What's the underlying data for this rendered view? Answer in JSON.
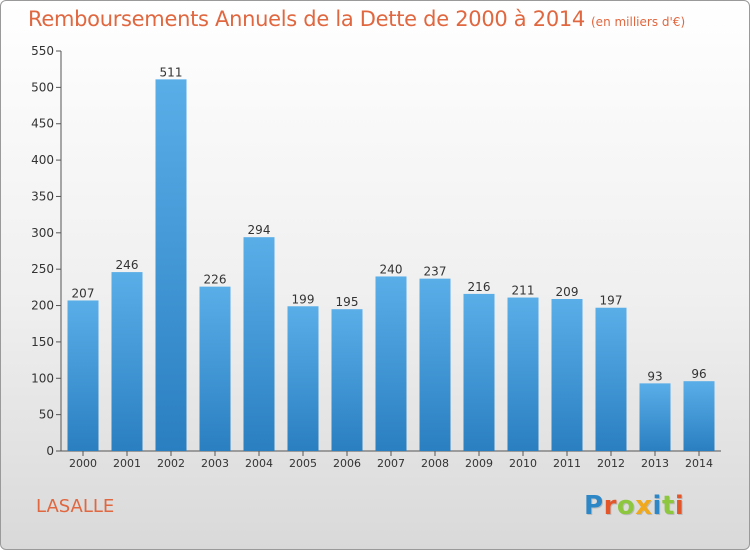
{
  "title": "Remboursements Annuels de la Dette de 2000 à 2014",
  "subtitle": "(en milliers d'€)",
  "commune": "LASALLE",
  "logo": {
    "letters": [
      "P",
      "r",
      "o",
      "x",
      "i",
      "t",
      "i"
    ],
    "colors": [
      "#2d86c6",
      "#e3562a",
      "#8dc63f",
      "#f0a81c",
      "#2d86c6",
      "#8dc63f",
      "#e3562a"
    ]
  },
  "colors": {
    "bar_top": "#5aaee8",
    "bar_bottom": "#2a7fc1",
    "title": "#e0673f"
  },
  "chart_data": {
    "type": "bar",
    "categories": [
      "2000",
      "2001",
      "2002",
      "2003",
      "2004",
      "2005",
      "2006",
      "2007",
      "2008",
      "2009",
      "2010",
      "2011",
      "2012",
      "2013",
      "2014"
    ],
    "values": [
      207,
      246,
      511,
      226,
      294,
      199,
      195,
      240,
      237,
      216,
      211,
      209,
      197,
      93,
      96
    ],
    "ylim": [
      0,
      550
    ],
    "yticks": [
      0,
      50,
      100,
      150,
      200,
      250,
      300,
      350,
      400,
      450,
      500,
      550
    ],
    "grid": false,
    "data_labels": true
  }
}
